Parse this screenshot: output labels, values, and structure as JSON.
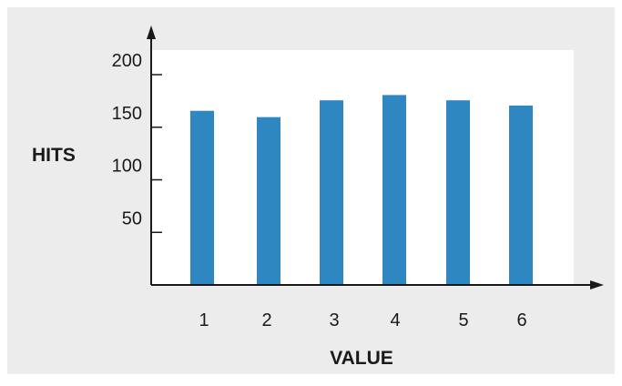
{
  "colors": {
    "outer_background": "#ececec",
    "plot_background": "#ffffff",
    "bar": "#2e87c0",
    "axis": "#1a1a1a",
    "text": "#1a1a1a"
  },
  "chart_data": {
    "type": "bar",
    "title": "",
    "xlabel": "VALUE",
    "ylabel": "HITS",
    "categories": [
      "1",
      "2",
      "3",
      "4",
      "5",
      "6"
    ],
    "values": [
      163,
      157,
      173,
      178,
      173,
      168
    ],
    "yticks": [
      50,
      100,
      150,
      200
    ],
    "ylim": [
      0,
      200
    ],
    "grid": false,
    "legend": "none"
  }
}
